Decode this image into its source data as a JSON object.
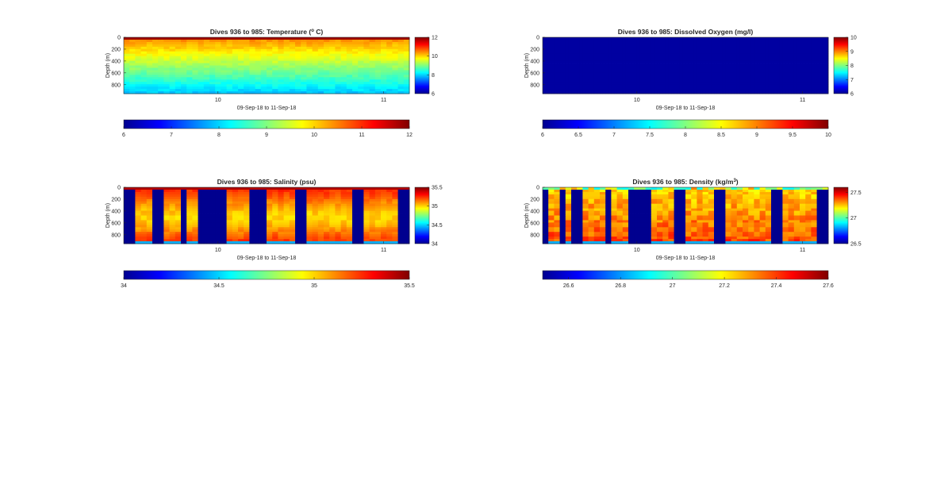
{
  "colormap_stops": [
    "#00008f",
    "#0000ff",
    "#0080ff",
    "#00ffff",
    "#80ff80",
    "#ffff00",
    "#ff8000",
    "#ff0000",
    "#800000"
  ],
  "panel_frame_color": "#262626",
  "chart_data": [
    {
      "type": "heatmap",
      "title_prefix": "Dives 936 to 985: Temperature (",
      "title_sup": "o",
      "title_suffix": " C)",
      "ylabel": "Depth (m)",
      "xlabel": "09-Sep-18 to 11-Sep-18",
      "yticks": [
        "0",
        "200",
        "400",
        "600",
        "800"
      ],
      "xticks": [
        "10",
        "11"
      ],
      "ylim": [
        0,
        950
      ],
      "clim": [
        6,
        12
      ],
      "colorbar_ticks": [
        "12",
        "10",
        "8",
        "6"
      ],
      "hcolorbar_ticks": [
        "6",
        "7",
        "8",
        "9",
        "10",
        "11",
        "12"
      ],
      "pattern": "temperature",
      "dives": 50
    },
    {
      "type": "heatmap",
      "title_prefix": "Dives 936 to 985: Dissolved Oxygen (mg/l)",
      "title_sup": "",
      "title_suffix": "",
      "ylabel": "Depth (m)",
      "xlabel": "09-Sep-18 to 11-Sep-18",
      "yticks": [
        "0",
        "200",
        "400",
        "600",
        "800"
      ],
      "xticks": [
        "10",
        "11"
      ],
      "ylim": [
        0,
        950
      ],
      "clim": [
        6,
        10
      ],
      "colorbar_ticks": [
        "10",
        "9",
        "8",
        "7",
        "6"
      ],
      "hcolorbar_ticks": [
        "6",
        "6.5",
        "7",
        "7.5",
        "8",
        "8.5",
        "9",
        "9.5",
        "10"
      ],
      "pattern": "uniform_low",
      "dives": 50
    },
    {
      "type": "heatmap",
      "title_prefix": "Dives 936 to 985: Salinity (psu)",
      "title_sup": "",
      "title_suffix": "",
      "ylabel": "Depth (m)",
      "xlabel": "09-Sep-18 to 11-Sep-18",
      "yticks": [
        "0",
        "200",
        "400",
        "600",
        "800"
      ],
      "xticks": [
        "10",
        "11"
      ],
      "ylim": [
        0,
        950
      ],
      "clim": [
        34,
        35.5
      ],
      "colorbar_ticks": [
        "35.5",
        "35",
        "34.5",
        "34"
      ],
      "hcolorbar_ticks": [
        "34",
        "34.5",
        "35",
        "35.5"
      ],
      "pattern": "salinity",
      "dives": 50
    },
    {
      "type": "heatmap",
      "title_prefix": "Dives 936 to 985: Density (kg/m",
      "title_sup": "3",
      "title_suffix": ")",
      "ylabel": "Depth (m)",
      "xlabel": "09-Sep-18 to 11-Sep-18",
      "yticks": [
        "0",
        "200",
        "400",
        "600",
        "800"
      ],
      "xticks": [
        "10",
        "11"
      ],
      "ylim": [
        0,
        950
      ],
      "clim": [
        26.5,
        27.6
      ],
      "colorbar_ticks": [
        "27.5",
        "27",
        "26.5"
      ],
      "hcolorbar_ticks": [
        "26.6",
        "26.8",
        "27",
        "27.2",
        "27.4",
        "27.6"
      ],
      "pattern": "density",
      "dives": 50
    }
  ]
}
